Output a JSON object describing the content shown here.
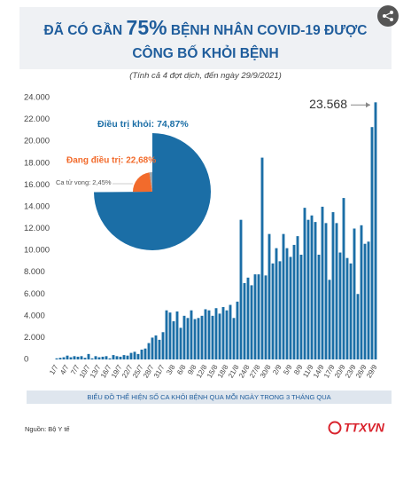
{
  "header": {
    "title_before": "ĐÃ CÓ GẦN",
    "title_highlight": "75%",
    "title_line1_end": "BỆNH NHÂN COVID-19 ĐƯỢC",
    "title_line2": "CÔNG BỐ KHỎI BỆNH",
    "subtitle": "(Tính cả 4 đợt dịch, đến ngày 29/9/2021)"
  },
  "chart_data": [
    {
      "type": "bar",
      "color": "#1b6ea6",
      "categories": [
        "1/7",
        null,
        null,
        "4/7",
        null,
        null,
        "7/7",
        null,
        null,
        "10/7",
        null,
        null,
        "13/7",
        null,
        null,
        "16/7",
        null,
        null,
        "19/7",
        null,
        null,
        "22/7",
        null,
        null,
        "25/7",
        null,
        null,
        "28/7",
        null,
        null,
        "31/7",
        null,
        null,
        "3/8",
        null,
        null,
        "6/8",
        null,
        null,
        "9/8",
        null,
        null,
        "12/8",
        null,
        null,
        "15/8",
        null,
        null,
        "18/8",
        null,
        null,
        "21/8",
        null,
        null,
        "24/8",
        null,
        null,
        "27/8",
        null,
        null,
        "30/8",
        null,
        null,
        "2/9",
        null,
        null,
        "5/9",
        null,
        null,
        "8/9",
        null,
        null,
        "11/9",
        null,
        null,
        "14/9",
        null,
        null,
        "17/9",
        null,
        null,
        "20/9",
        null,
        null,
        "23/9",
        null,
        null,
        "26/9",
        null,
        null,
        "29/9"
      ],
      "values": [
        100,
        150,
        200,
        350,
        200,
        300,
        250,
        300,
        150,
        500,
        100,
        300,
        200,
        250,
        300,
        100,
        400,
        300,
        250,
        400,
        350,
        600,
        700,
        500,
        900,
        1000,
        1500,
        2000,
        2200,
        1800,
        2500,
        4500,
        4300,
        3500,
        4400,
        2900,
        4000,
        3800,
        4500,
        3700,
        3800,
        4000,
        4600,
        4500,
        4000,
        4700,
        4200,
        4800,
        4500,
        5000,
        3800,
        5300,
        12800,
        7000,
        7500,
        6800,
        7800,
        7800,
        18500,
        7700,
        11500,
        8800,
        10200,
        9000,
        11500,
        10200,
        9400,
        10500,
        11300,
        9600,
        13900,
        12800,
        13200,
        12600,
        9600,
        14000,
        12500,
        7300,
        13500,
        12500,
        9800,
        14800,
        9300,
        8800,
        12000,
        6000,
        12300,
        10600,
        10800,
        21300,
        23568
      ],
      "value_labels": [
        null,
        null,
        null,
        null,
        null,
        null,
        null,
        null,
        null,
        null,
        null,
        null,
        null,
        null,
        null,
        null,
        null,
        null,
        null,
        null,
        null,
        null,
        null,
        null,
        null,
        null,
        null,
        null,
        null,
        null,
        null,
        null,
        null,
        null,
        null,
        null,
        null,
        null,
        null,
        null,
        null,
        null,
        null,
        null,
        null,
        null,
        null,
        null,
        null,
        null,
        null,
        null,
        null,
        null,
        null,
        null,
        null,
        null,
        null,
        null,
        null,
        null,
        null,
        null,
        null,
        null,
        null,
        null,
        null,
        null,
        null,
        null,
        null,
        null,
        null,
        null,
        null,
        null,
        null,
        null,
        null,
        null,
        null,
        null,
        null,
        null,
        null,
        null,
        null,
        null,
        "23.568"
      ],
      "ylim": [
        0,
        24000
      ],
      "yticks": [
        0,
        {
          "value": 2000,
          "label": "2.000"
        },
        {
          "value": 4000,
          "label": "4.000"
        },
        {
          "value": 6000,
          "label": "6.000"
        },
        {
          "value": 8000,
          "label": "8.000"
        },
        {
          "value": 10000,
          "label": "10.000"
        },
        {
          "value": 12000,
          "label": "12.000"
        },
        {
          "value": 14000,
          "label": "14.000"
        },
        {
          "value": 16000,
          "label": "16.000"
        },
        {
          "value": 18000,
          "label": "18.000"
        },
        {
          "value": 20000,
          "label": "20.000"
        },
        {
          "value": 22000,
          "label": "22.000"
        },
        {
          "value": 24000,
          "label": "24.000"
        }
      ],
      "grid": false,
      "caption": "BIỂU ĐỒ THỂ HIỆN SỐ CA KHỎI BỆNH QUA MỖI NGÀY TRONG 3 THÁNG QUA"
    },
    {
      "type": "pie",
      "values": [
        74.87,
        22.68,
        2.45
      ],
      "value_labels": [
        "Điều trị khỏi: 74,87%",
        "Đang điều trị: 22,68%",
        "Ca tử vong: 2,45%"
      ],
      "colors": [
        "#1b6ea6",
        "#f26b2c",
        "#9aa5ae"
      ]
    }
  ],
  "footer": {
    "source": "Nguồn: Bộ Y tế",
    "logo": "TTXVN"
  }
}
